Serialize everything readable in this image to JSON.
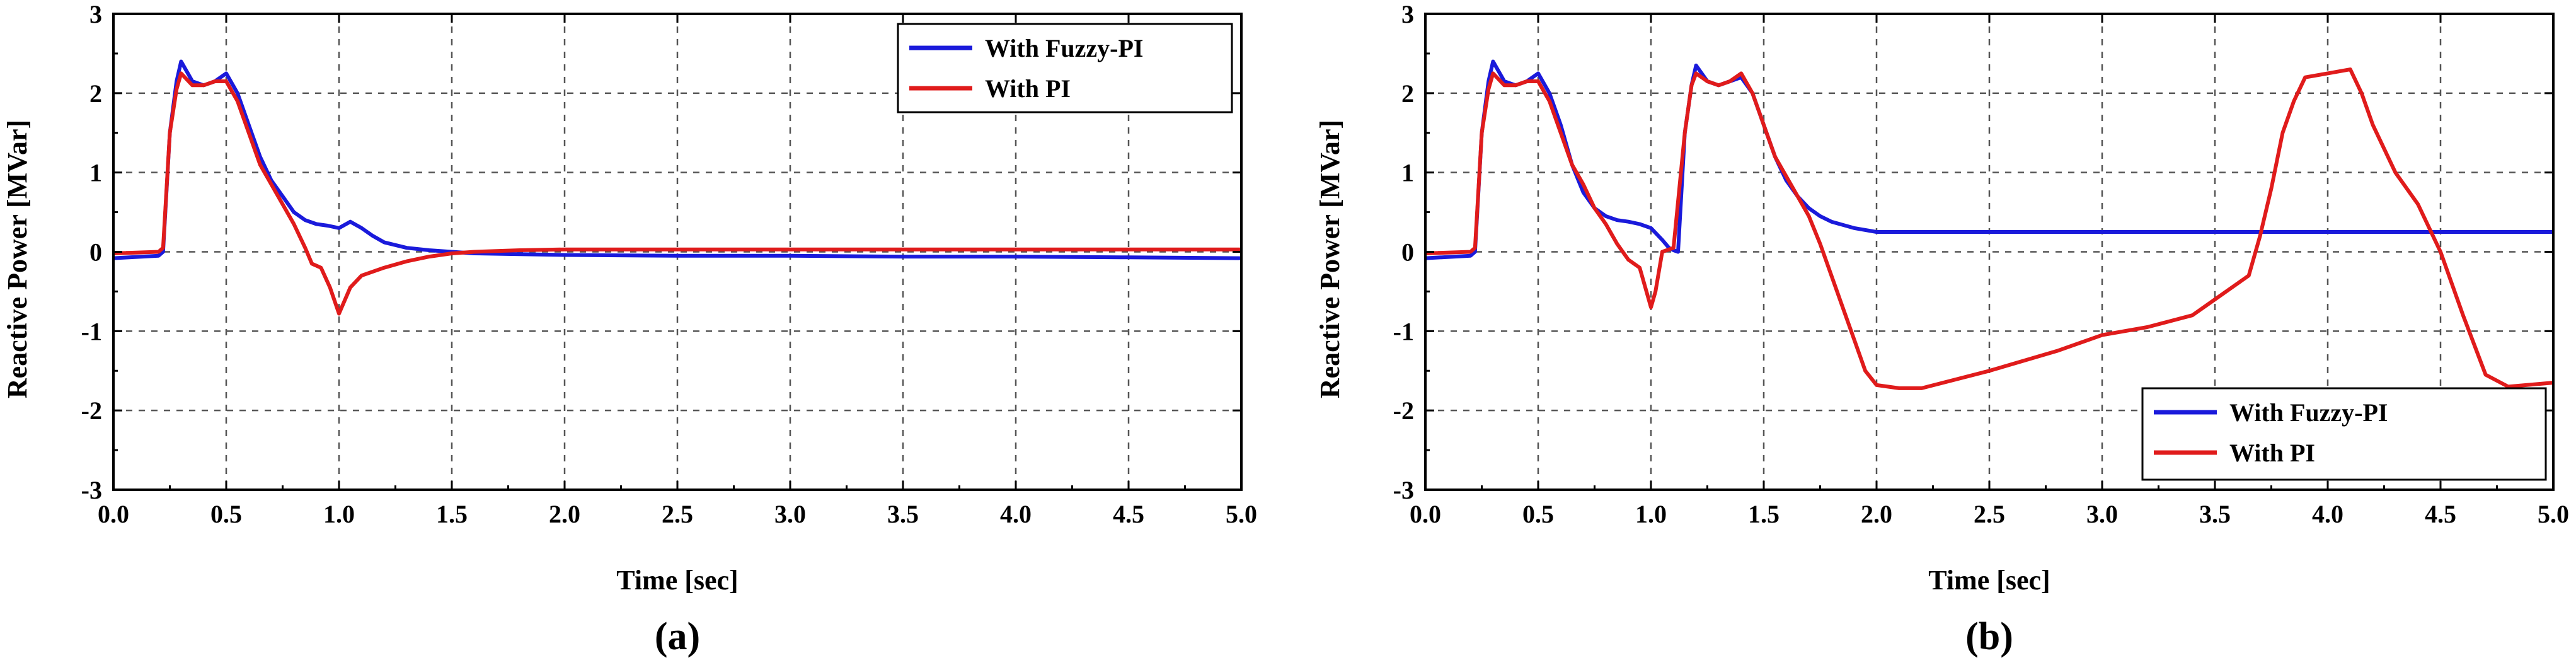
{
  "panels": [
    {
      "label_letter": "a",
      "xlabel": "Time [sec]",
      "ylabel": "Reactive Power [MVar]",
      "legend": [
        "With Fuzzy-PI",
        "With PI"
      ]
    },
    {
      "label_letter": "b",
      "xlabel": "Time [sec]",
      "ylabel": "Reactive Power [MVar]",
      "legend": [
        "With Fuzzy-PI",
        "With PI"
      ]
    }
  ],
  "colors": {
    "fuzzy_pi": "#1a1adb",
    "pi": "#e01b1b"
  },
  "chart_data": [
    {
      "type": "line",
      "panel": "a",
      "xlabel": "Time [sec]",
      "ylabel": "Reactive Power [MVar]",
      "xlim": [
        0.0,
        5.0
      ],
      "ylim": [
        -3,
        3
      ],
      "xticks": [
        "0.0",
        "0.5",
        "1.0",
        "1.5",
        "2.0",
        "2.5",
        "3.0",
        "3.5",
        "4.0",
        "4.5",
        "5.0"
      ],
      "yticks": [
        "3",
        "2",
        "1",
        "0",
        "-1",
        "-2",
        "-3"
      ],
      "grid": true,
      "legend_position": "top-right",
      "series": [
        {
          "name": "With Fuzzy-PI",
          "color": "#1a1adb",
          "x": [
            0.0,
            0.2,
            0.22,
            0.25,
            0.28,
            0.3,
            0.35,
            0.4,
            0.45,
            0.5,
            0.55,
            0.6,
            0.65,
            0.7,
            0.75,
            0.8,
            0.85,
            0.9,
            0.95,
            1.0,
            1.05,
            1.1,
            1.15,
            1.2,
            1.3,
            1.4,
            1.5,
            1.6,
            1.8,
            2.0,
            2.5,
            3.0,
            3.5,
            4.0,
            4.5,
            5.0
          ],
          "y": [
            -0.08,
            -0.05,
            0.0,
            1.5,
            2.15,
            2.4,
            2.15,
            2.1,
            2.15,
            2.25,
            2.0,
            1.6,
            1.2,
            0.9,
            0.7,
            0.5,
            0.4,
            0.35,
            0.33,
            0.3,
            0.38,
            0.3,
            0.2,
            0.12,
            0.05,
            0.02,
            0.0,
            -0.02,
            -0.03,
            -0.04,
            -0.05,
            -0.05,
            -0.06,
            -0.06,
            -0.07,
            -0.08
          ]
        },
        {
          "name": "With PI",
          "color": "#e01b1b",
          "x": [
            0.0,
            0.2,
            0.22,
            0.25,
            0.28,
            0.3,
            0.35,
            0.4,
            0.45,
            0.5,
            0.55,
            0.6,
            0.65,
            0.7,
            0.75,
            0.8,
            0.85,
            0.88,
            0.92,
            0.96,
            1.0,
            1.05,
            1.1,
            1.2,
            1.3,
            1.4,
            1.5,
            1.6,
            1.8,
            2.0,
            2.5,
            3.0,
            3.5,
            4.0,
            4.5,
            5.0
          ],
          "y": [
            -0.02,
            0.0,
            0.05,
            1.5,
            2.05,
            2.25,
            2.1,
            2.1,
            2.15,
            2.15,
            1.9,
            1.5,
            1.1,
            0.85,
            0.6,
            0.35,
            0.05,
            -0.15,
            -0.2,
            -0.45,
            -0.78,
            -0.45,
            -0.3,
            -0.2,
            -0.12,
            -0.06,
            -0.02,
            0.0,
            0.02,
            0.03,
            0.03,
            0.03,
            0.03,
            0.03,
            0.03,
            0.03
          ]
        }
      ]
    },
    {
      "type": "line",
      "panel": "b",
      "xlabel": "Time [sec]",
      "ylabel": "Reactive Power [MVar]",
      "xlim": [
        0.0,
        5.0
      ],
      "ylim": [
        -3,
        3
      ],
      "xticks": [
        "0.0",
        "0.5",
        "1.0",
        "1.5",
        "2.0",
        "2.5",
        "3.0",
        "3.5",
        "4.0",
        "4.5",
        "5.0"
      ],
      "yticks": [
        "3",
        "2",
        "1",
        "0",
        "-1",
        "-2",
        "-3"
      ],
      "grid": true,
      "legend_position": "bottom-right",
      "series": [
        {
          "name": "With Fuzzy-PI",
          "color": "#1a1adb",
          "x": [
            0.0,
            0.2,
            0.22,
            0.25,
            0.28,
            0.3,
            0.35,
            0.4,
            0.45,
            0.5,
            0.55,
            0.6,
            0.65,
            0.7,
            0.75,
            0.8,
            0.85,
            0.9,
            0.95,
            1.0,
            1.05,
            1.08,
            1.1,
            1.12,
            1.15,
            1.18,
            1.2,
            1.25,
            1.3,
            1.35,
            1.4,
            1.45,
            1.5,
            1.55,
            1.6,
            1.65,
            1.7,
            1.75,
            1.8,
            1.9,
            2.0,
            2.5,
            3.0,
            3.5,
            4.0,
            4.5,
            5.0
          ],
          "y": [
            -0.08,
            -0.05,
            0.0,
            1.5,
            2.15,
            2.4,
            2.15,
            2.1,
            2.15,
            2.25,
            2.0,
            1.6,
            1.1,
            0.75,
            0.55,
            0.45,
            0.4,
            0.38,
            0.35,
            0.3,
            0.15,
            0.05,
            0.02,
            0.0,
            1.5,
            2.1,
            2.35,
            2.15,
            2.1,
            2.15,
            2.2,
            2.0,
            1.6,
            1.2,
            0.9,
            0.7,
            0.55,
            0.45,
            0.38,
            0.3,
            0.25,
            0.25,
            0.25,
            0.25,
            0.25,
            0.25,
            0.25
          ]
        },
        {
          "name": "With PI",
          "color": "#e01b1b",
          "x": [
            0.0,
            0.2,
            0.22,
            0.25,
            0.28,
            0.3,
            0.35,
            0.4,
            0.45,
            0.5,
            0.55,
            0.6,
            0.65,
            0.7,
            0.75,
            0.8,
            0.85,
            0.9,
            0.95,
            1.0,
            1.02,
            1.05,
            1.1,
            1.15,
            1.18,
            1.2,
            1.25,
            1.3,
            1.35,
            1.4,
            1.45,
            1.5,
            1.55,
            1.6,
            1.65,
            1.7,
            1.75,
            1.8,
            1.85,
            1.9,
            1.95,
            2.0,
            2.1,
            2.2,
            2.5,
            2.8,
            3.0,
            3.2,
            3.4,
            3.5,
            3.6,
            3.65,
            3.7,
            3.75,
            3.8,
            3.85,
            3.9,
            4.0,
            4.1,
            4.15,
            4.2,
            4.3,
            4.4,
            4.5,
            4.6,
            4.7,
            4.8,
            5.0
          ],
          "y": [
            -0.02,
            0.0,
            0.05,
            1.5,
            2.05,
            2.25,
            2.1,
            2.1,
            2.15,
            2.15,
            1.9,
            1.5,
            1.1,
            0.85,
            0.55,
            0.35,
            0.1,
            -0.1,
            -0.2,
            -0.7,
            -0.5,
            0.0,
            0.05,
            1.5,
            2.1,
            2.25,
            2.15,
            2.1,
            2.15,
            2.25,
            2.0,
            1.6,
            1.2,
            0.95,
            0.7,
            0.45,
            0.1,
            -0.3,
            -0.7,
            -1.1,
            -1.5,
            -1.68,
            -1.72,
            -1.72,
            -1.5,
            -1.25,
            -1.05,
            -0.95,
            -0.8,
            -0.6,
            -0.4,
            -0.3,
            0.2,
            0.8,
            1.5,
            1.9,
            2.2,
            2.25,
            2.3,
            2.0,
            1.6,
            1.0,
            0.6,
            0.0,
            -0.8,
            -1.55,
            -1.7,
            -1.65
          ]
        }
      ]
    }
  ]
}
